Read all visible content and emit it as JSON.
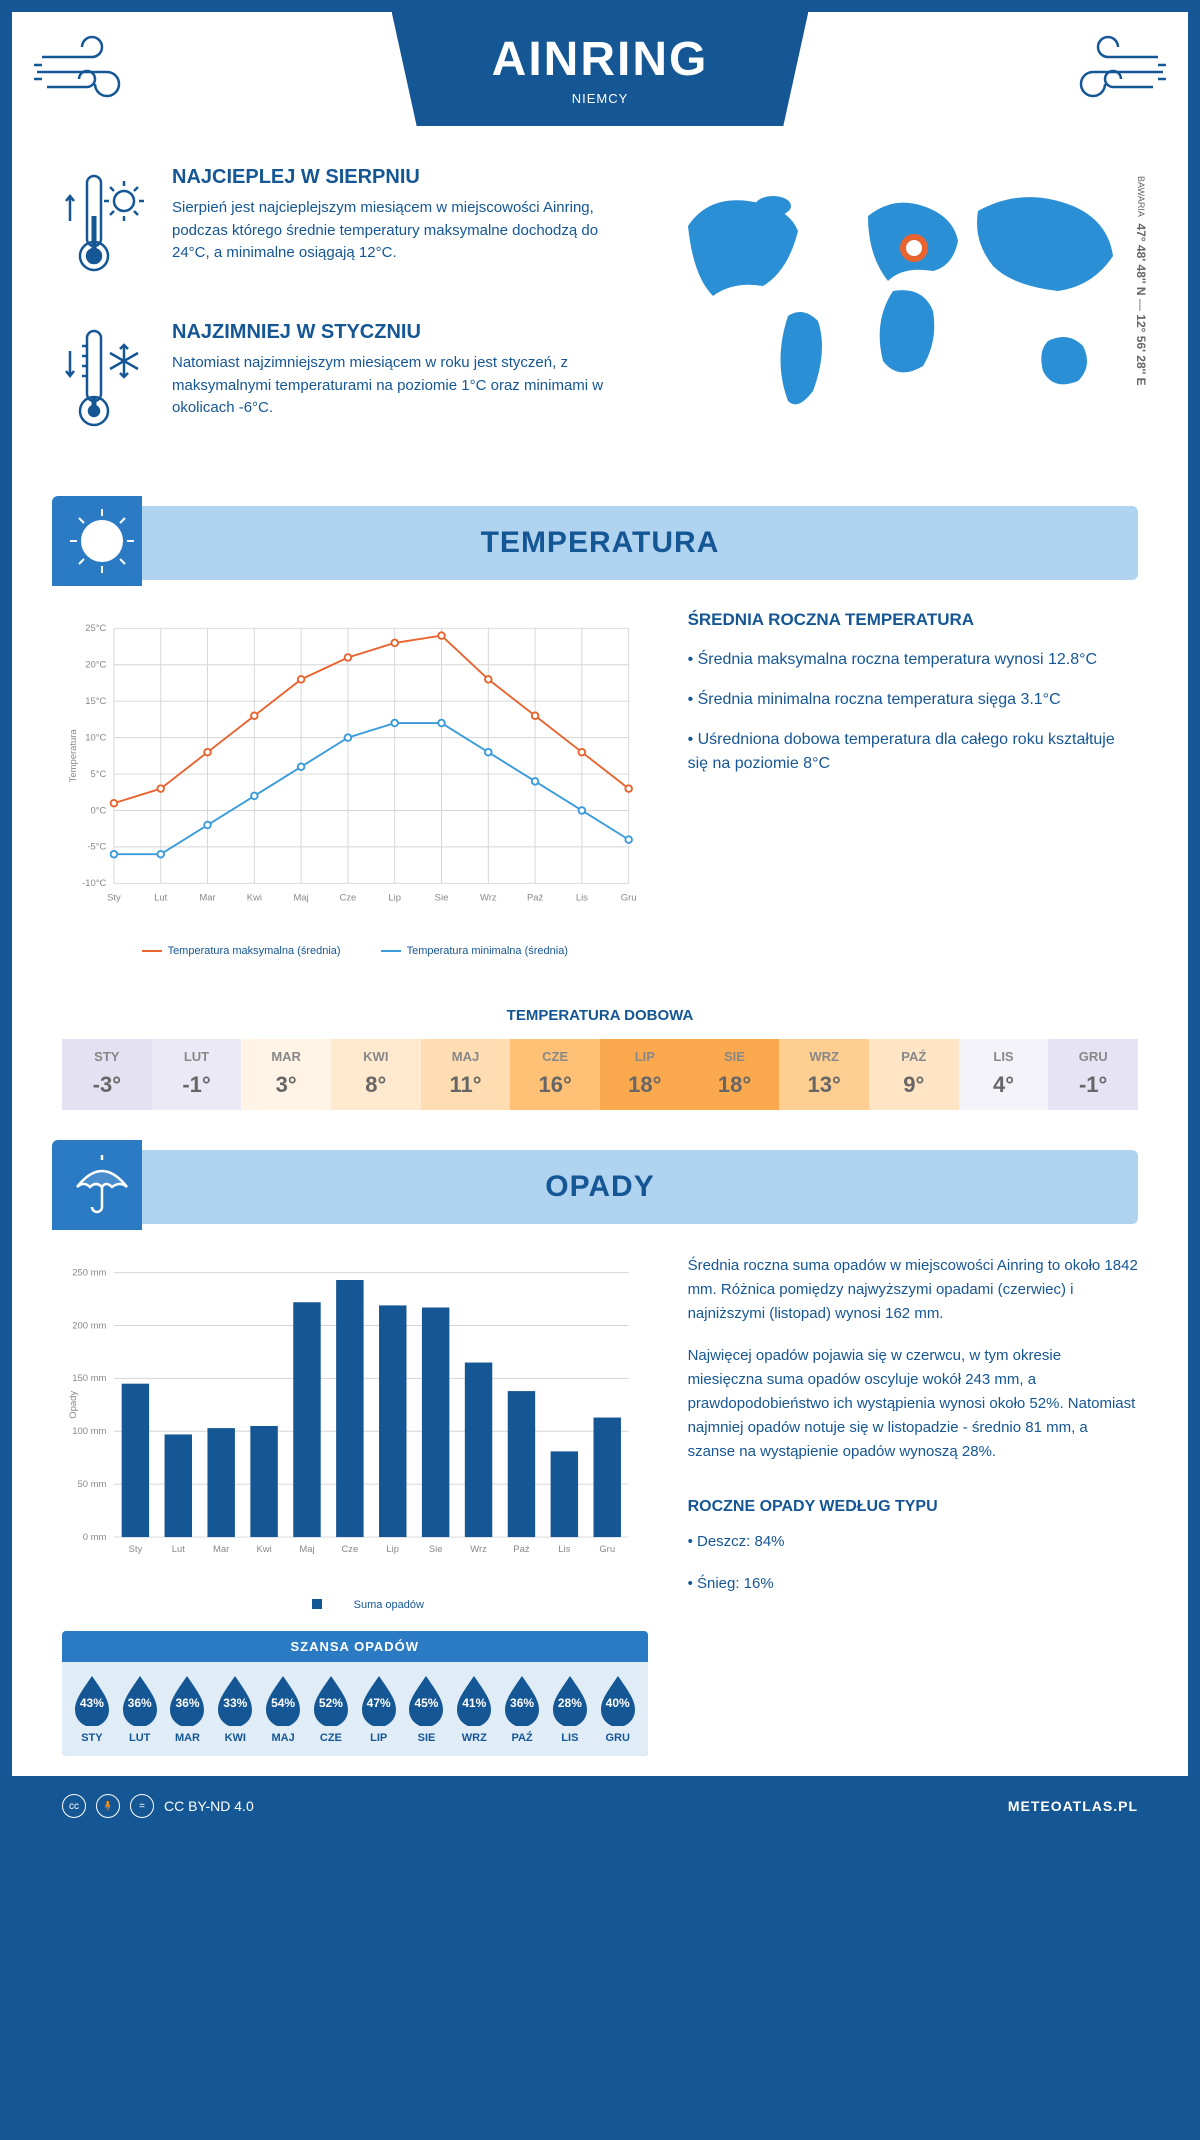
{
  "header": {
    "title": "AINRING",
    "country": "NIEMCY"
  },
  "coords": {
    "lat": "47° 48' 48'' N",
    "lon": "12° 56' 28'' E",
    "region": "BAWARIA"
  },
  "warm": {
    "title": "NAJCIEPLEJ W SIERPNIU",
    "text": "Sierpień jest najcieplejszym miesiącem w miejscowości Ainring, podczas którego średnie temperatury maksymalne dochodzą do 24°C, a minimalne osiągają 12°C."
  },
  "cold": {
    "title": "NAJZIMNIEJ W STYCZNIU",
    "text": "Natomiast najzimniejszym miesiącem w roku jest styczeń, z maksymalnymi temperaturami na poziomie 1°C oraz minimami w okolicach -6°C."
  },
  "section_temp": "TEMPERATURA",
  "section_precip": "OPADY",
  "temp_chart": {
    "type": "line",
    "months": [
      "Sty",
      "Lut",
      "Mar",
      "Kwi",
      "Maj",
      "Cze",
      "Lip",
      "Sie",
      "Wrz",
      "Paź",
      "Lis",
      "Gru"
    ],
    "max_series": [
      1,
      3,
      8,
      13,
      18,
      21,
      23,
      24,
      18,
      13,
      8,
      3
    ],
    "min_series": [
      -6,
      -6,
      -2,
      2,
      6,
      10,
      12,
      12,
      8,
      4,
      0,
      -4
    ],
    "max_color": "#e8632e",
    "min_color": "#3a9bdc",
    "ylim": [
      -10,
      25
    ],
    "ytick_step": 5,
    "ylabel": "Temperatura",
    "legend_max": "Temperatura maksymalna (średnia)",
    "legend_min": "Temperatura minimalna (średnia)",
    "grid_color": "#d5d5d5",
    "axis_font": 10
  },
  "temp_info": {
    "title": "ŚREDNIA ROCZNA TEMPERATURA",
    "b1": "• Średnia maksymalna roczna temperatura wynosi 12.8°C",
    "b2": "• Średnia minimalna roczna temperatura sięga 3.1°C",
    "b3": "• Uśredniona dobowa temperatura dla całego roku kształtuje się na poziomie 8°C"
  },
  "daily": {
    "title": "TEMPERATURA DOBOWA",
    "months": [
      "STY",
      "LUT",
      "MAR",
      "KWI",
      "MAJ",
      "CZE",
      "LIP",
      "SIE",
      "WRZ",
      "PAŹ",
      "LIS",
      "GRU"
    ],
    "values": [
      "-3°",
      "-1°",
      "3°",
      "8°",
      "11°",
      "16°",
      "18°",
      "18°",
      "13°",
      "9°",
      "4°",
      "-1°"
    ],
    "colors": [
      "#e3e1f2",
      "#ece9f6",
      "#fff4e6",
      "#ffe9cf",
      "#ffddb3",
      "#ffc176",
      "#fba94e",
      "#fba94e",
      "#ffcf91",
      "#ffe5c6",
      "#f5f3fa",
      "#e6e4f4"
    ]
  },
  "precip_chart": {
    "type": "bar",
    "months": [
      "Sty",
      "Lut",
      "Mar",
      "Kwi",
      "Maj",
      "Cze",
      "Lip",
      "Sie",
      "Wrz",
      "Paź",
      "Lis",
      "Gru"
    ],
    "values": [
      145,
      97,
      103,
      105,
      222,
      243,
      219,
      217,
      165,
      138,
      81,
      113
    ],
    "bar_color": "#155695",
    "ylim": [
      0,
      250
    ],
    "ytick_step": 50,
    "ylabel": "Opady",
    "legend": "Suma opadów",
    "grid_color": "#d5d5d5"
  },
  "precip_text": {
    "p1": "Średnia roczna suma opadów w miejscowości Ainring to około 1842 mm. Różnica pomiędzy najwyższymi opadami (czerwiec) i najniższymi (listopad) wynosi 162 mm.",
    "p2": "Najwięcej opadów pojawia się w czerwcu, w tym okresie miesięczna suma opadów oscyluje wokół 243 mm, a prawdopodobieństwo ich wystąpienia wynosi około 52%. Natomiast najmniej opadów notuje się w listopadzie - średnio 81 mm, a szanse na wystąpienie opadów wynoszą 28%.",
    "type_title": "ROCZNE OPADY WEDŁUG TYPU",
    "rain": "• Deszcz: 84%",
    "snow": "• Śnieg: 16%"
  },
  "chance": {
    "title": "SZANSA OPADÓW",
    "months": [
      "STY",
      "LUT",
      "MAR",
      "KWI",
      "MAJ",
      "CZE",
      "LIP",
      "SIE",
      "WRZ",
      "PAŹ",
      "LIS",
      "GRU"
    ],
    "values": [
      "43%",
      "36%",
      "36%",
      "33%",
      "54%",
      "52%",
      "47%",
      "45%",
      "41%",
      "36%",
      "28%",
      "40%"
    ],
    "drop_color": "#155695"
  },
  "footer": {
    "license": "CC BY-ND 4.0",
    "site": "METEOATLAS.PL"
  },
  "colors": {
    "primary": "#155695",
    "lightblue": "#b0d4ef",
    "midblue": "#2a7ac4"
  }
}
